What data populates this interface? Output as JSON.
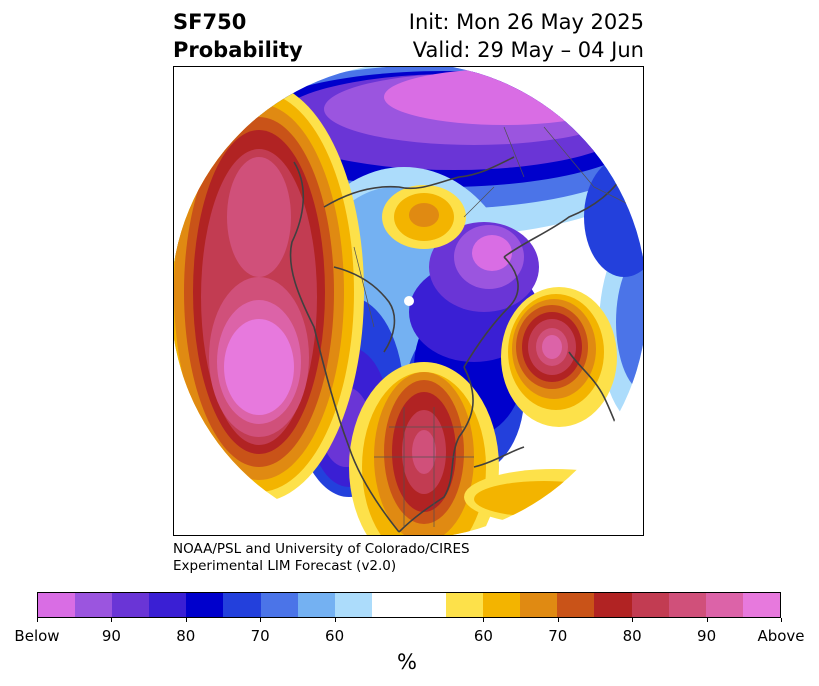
{
  "title": {
    "variable": "SF750",
    "subtitle": "Probability",
    "init": "Init: Mon 26 May 2025",
    "valid": "Valid: 29 May – 04 Jun"
  },
  "credit": {
    "line1": "NOAA/PSL and University of Colorado/CIRES",
    "line2": "Experimental LIM Forecast (v2.0)"
  },
  "map": {
    "projection": "north-polar-stereographic",
    "field": "SF750 probability",
    "below_color": "#6a35d6",
    "above_color": "#e06fd9"
  },
  "colorbar": {
    "colors": [
      "#d96de4",
      "#9b55df",
      "#6a35d6",
      "#3a1fd4",
      "#0000cc",
      "#2340dc",
      "#4b74e8",
      "#74b1f2",
      "#acdcfb",
      "#ffffff",
      "#ffffff",
      "#fde14a",
      "#f3b400",
      "#e08a12",
      "#c95318",
      "#b12323",
      "#c23c52",
      "#d0507a",
      "#dc63a8",
      "#e779dd"
    ],
    "labels": [
      "Below",
      "90",
      "80",
      "70",
      "60",
      "60",
      "70",
      "80",
      "90",
      "Above"
    ],
    "unit": "%"
  }
}
